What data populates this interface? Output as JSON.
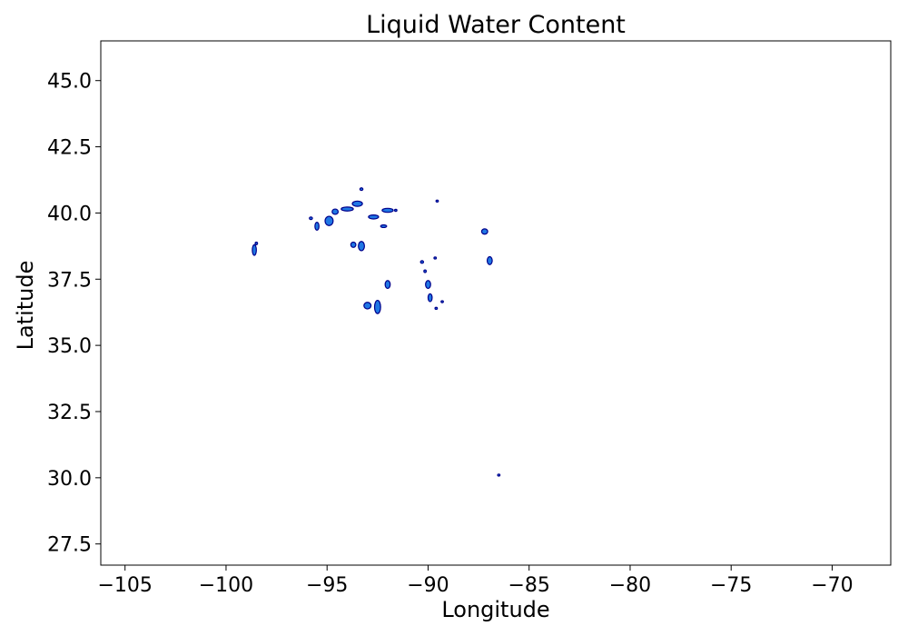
{
  "chart_data": {
    "type": "scatter",
    "title": "Liquid Water Content",
    "xlabel": "Longitude",
    "ylabel": "Latitude",
    "xlim": [
      -106.2,
      -67.1
    ],
    "ylim": [
      26.7,
      46.5
    ],
    "grid": false,
    "x_ticks": [
      -105,
      -100,
      -95,
      -90,
      -85,
      -80,
      -75,
      -70
    ],
    "x_tick_labels": [
      "−105",
      "−100",
      "−95",
      "−90",
      "−85",
      "−80",
      "−75",
      "−70"
    ],
    "y_ticks": [
      27.5,
      30.0,
      32.5,
      35.0,
      37.5,
      40.0,
      42.5,
      45.0
    ],
    "y_tick_labels": [
      "27.5",
      "30.0",
      "32.5",
      "35.0",
      "37.5",
      "40.0",
      "42.5",
      "45.0"
    ],
    "colors": {
      "fill": "#1f77e4",
      "edge": "#00008b"
    },
    "series": [
      {
        "points": [
          {
            "x": -98.6,
            "y": 38.6,
            "w": 0.2,
            "h": 0.4
          },
          {
            "x": -98.5,
            "y": 38.85,
            "w": 0.05,
            "h": 0.1
          },
          {
            "x": -95.8,
            "y": 39.8,
            "w": 0.15,
            "h": 0.1
          },
          {
            "x": -95.5,
            "y": 39.5,
            "w": 0.2,
            "h": 0.3
          },
          {
            "x": -94.9,
            "y": 39.7,
            "w": 0.4,
            "h": 0.35
          },
          {
            "x": -94.6,
            "y": 40.05,
            "w": 0.3,
            "h": 0.2
          },
          {
            "x": -94.0,
            "y": 40.15,
            "w": 0.6,
            "h": 0.15
          },
          {
            "x": -93.5,
            "y": 40.35,
            "w": 0.5,
            "h": 0.2
          },
          {
            "x": -93.3,
            "y": 40.9,
            "w": 0.15,
            "h": 0.1
          },
          {
            "x": -92.7,
            "y": 39.85,
            "w": 0.5,
            "h": 0.15
          },
          {
            "x": -92.0,
            "y": 40.1,
            "w": 0.55,
            "h": 0.15
          },
          {
            "x": -91.6,
            "y": 40.1,
            "w": 0.05,
            "h": 0.05
          },
          {
            "x": -92.2,
            "y": 39.5,
            "w": 0.3,
            "h": 0.1
          },
          {
            "x": -93.7,
            "y": 38.8,
            "w": 0.25,
            "h": 0.2
          },
          {
            "x": -93.3,
            "y": 38.75,
            "w": 0.3,
            "h": 0.35
          },
          {
            "x": -92.0,
            "y": 37.3,
            "w": 0.25,
            "h": 0.3
          },
          {
            "x": -93.0,
            "y": 36.5,
            "w": 0.35,
            "h": 0.25
          },
          {
            "x": -92.5,
            "y": 36.45,
            "w": 0.3,
            "h": 0.5
          },
          {
            "x": -90.3,
            "y": 38.15,
            "w": 0.15,
            "h": 0.1
          },
          {
            "x": -90.15,
            "y": 37.8,
            "w": 0.05,
            "h": 0.1
          },
          {
            "x": -90.0,
            "y": 37.3,
            "w": 0.25,
            "h": 0.3
          },
          {
            "x": -89.9,
            "y": 36.8,
            "w": 0.2,
            "h": 0.3
          },
          {
            "x": -89.65,
            "y": 38.3,
            "w": 0.05,
            "h": 0.05
          },
          {
            "x": -89.55,
            "y": 40.45,
            "w": 0.05,
            "h": 0.05
          },
          {
            "x": -89.3,
            "y": 36.65,
            "w": 0.05,
            "h": 0.05
          },
          {
            "x": -89.6,
            "y": 36.4,
            "w": 0.05,
            "h": 0.05
          },
          {
            "x": -87.2,
            "y": 39.3,
            "w": 0.3,
            "h": 0.2
          },
          {
            "x": -86.95,
            "y": 38.2,
            "w": 0.25,
            "h": 0.3
          },
          {
            "x": -86.5,
            "y": 30.1,
            "w": 0.1,
            "h": 0.05
          }
        ]
      }
    ]
  }
}
